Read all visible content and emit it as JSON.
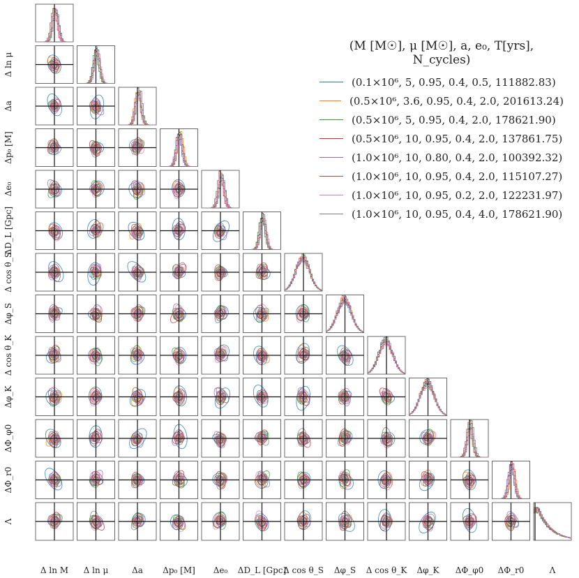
{
  "chart_data": {
    "type": "scatter",
    "subtype": "corner-plot",
    "parameters": [
      "Δ ln M",
      "Δ ln μ",
      "Δa",
      "Δp₀ [M]",
      "Δe₀",
      "ΔD_L [Gpc]",
      "Δ cos θ_S",
      "Δφ_S",
      "Δ cos θ_K",
      "Δφ_K",
      "ΔΦ_φ0",
      "ΔΦ_r0",
      "Λ"
    ],
    "legend": {
      "title": "(M [M☉], μ [M☉], a, e₀, T[yrs], N_cycles)",
      "placement": "top-right"
    },
    "series": [
      {
        "name": "(0.1×10⁶,   5, 0.95, 0.4, 0.5, 111882.83)",
        "color": "#1f77b4"
      },
      {
        "name": "(0.5×10⁶, 3.6, 0.95, 0.4, 2.0, 201613.24)",
        "color": "#ff7f0e"
      },
      {
        "name": "(0.5×10⁶,   5, 0.95, 0.4, 2.0, 178621.90)",
        "color": "#2ca02c"
      },
      {
        "name": "(0.5×10⁶, 10, 0.95, 0.4, 2.0, 137861.75)",
        "color": "#d62728"
      },
      {
        "name": "(1.0×10⁶, 10, 0.80, 0.4, 2.0, 100392.32)",
        "color": "#9467bd"
      },
      {
        "name": "(1.0×10⁶, 10, 0.95, 0.4, 2.0, 115107.27)",
        "color": "#8c564b"
      },
      {
        "name": "(1.0×10⁶, 10, 0.95, 0.2, 2.0, 122231.97)",
        "color": "#e377c2"
      },
      {
        "name": "(1.0×10⁶, 10, 0.95, 0.4, 4.0, 178621.90)",
        "color": "#7f7f7f"
      }
    ],
    "truth_lines": true,
    "diagonal": "histogram",
    "off_diagonal": "contour"
  }
}
